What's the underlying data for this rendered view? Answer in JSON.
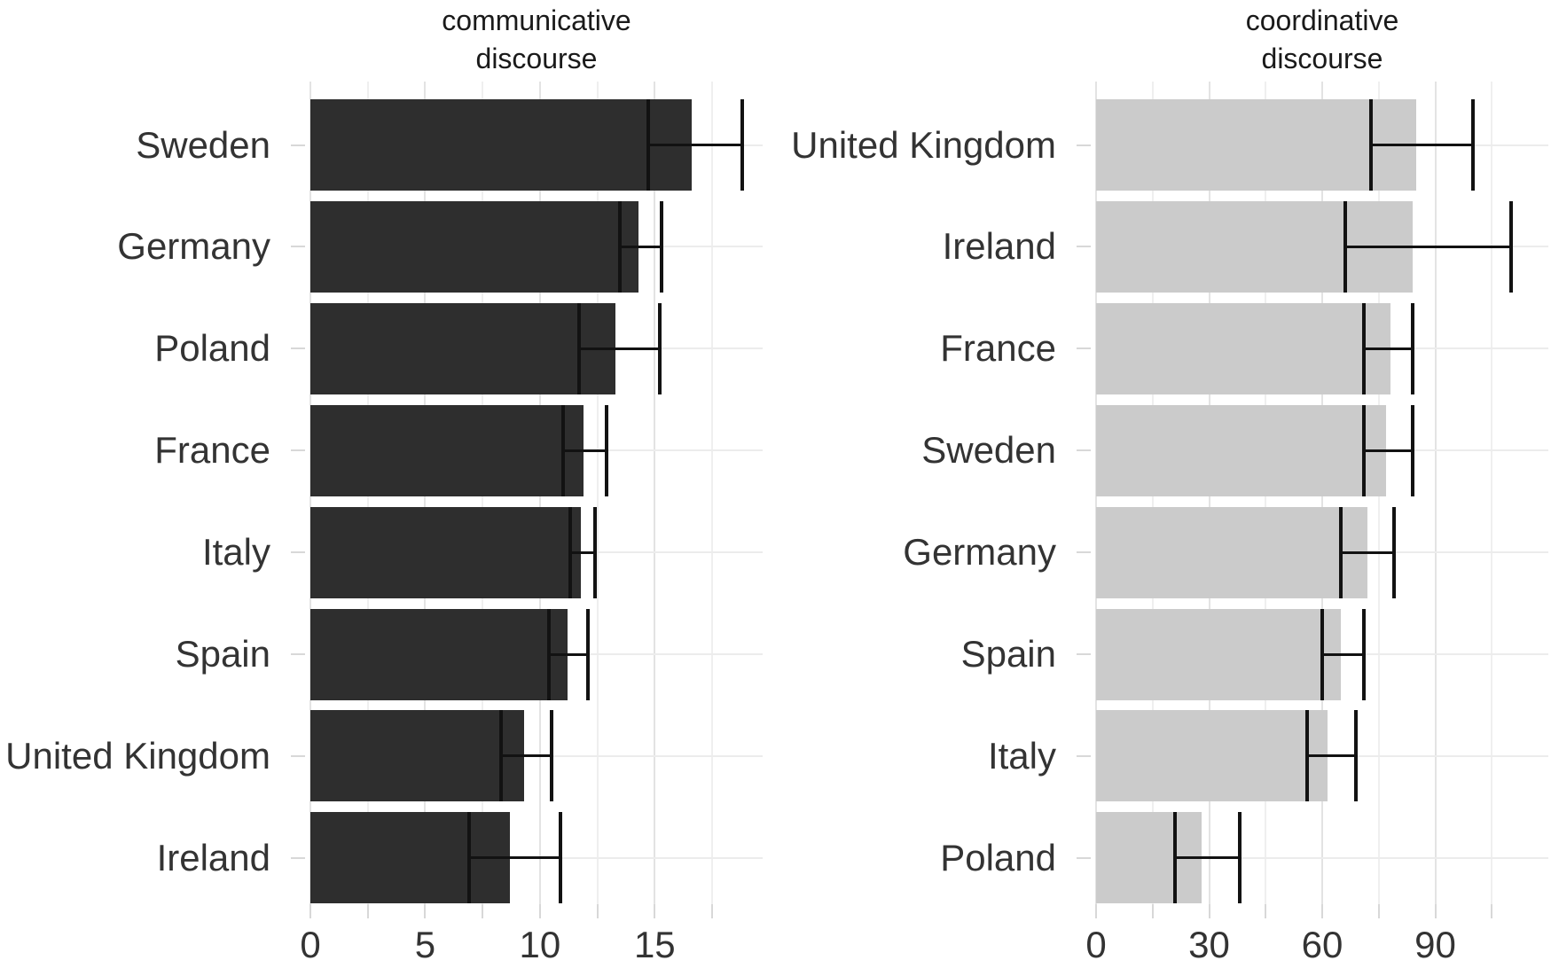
{
  "figure": {
    "background": "#ffffff",
    "error_bar_color": "#121212",
    "grid_major_color": "#e3e3e3",
    "grid_minor_color": "#efefef",
    "row_grid_color": "#ececec",
    "tick_mark_color": "#d8d8d8",
    "axis_text_color": "#333333",
    "title_color": "#1a1a1a"
  },
  "chart_data": [
    {
      "type": "bar",
      "orientation": "horizontal",
      "title_line1": "communicative",
      "title_line2": "discourse",
      "bar_color": "#2e2e2e",
      "grid": true,
      "legend": "none",
      "xlim": [
        0,
        19.7
      ],
      "x_ticks_major": [
        0,
        5,
        10,
        15
      ],
      "x_tick_labels": [
        "0",
        "5",
        "10",
        "15"
      ],
      "x_ticks_minor": [
        2.5,
        7.5,
        12.5,
        17.5
      ],
      "categories": [
        "Sweden",
        "Germany",
        "Poland",
        "France",
        "Italy",
        "Spain",
        "United Kingdom",
        "Ireland"
      ],
      "values": [
        16.6,
        14.3,
        13.3,
        11.9,
        11.8,
        11.2,
        9.3,
        8.7
      ],
      "ci_low": [
        14.7,
        13.5,
        11.7,
        11.0,
        11.3,
        10.4,
        8.3,
        6.9
      ],
      "ci_high": [
        18.8,
        15.3,
        15.2,
        12.9,
        12.4,
        12.1,
        10.5,
        10.9
      ]
    },
    {
      "type": "bar",
      "orientation": "horizontal",
      "title_line1": "coordinative",
      "title_line2": "discourse",
      "bar_color": "#cbcbcb",
      "grid": true,
      "legend": "none",
      "xlim": [
        0,
        120
      ],
      "x_ticks_major": [
        0,
        30,
        60,
        90
      ],
      "x_tick_labels": [
        "0",
        "30",
        "60",
        "90"
      ],
      "x_ticks_minor": [
        15,
        45,
        75,
        105
      ],
      "categories": [
        "United Kingdom",
        "Ireland",
        "France",
        "Sweden",
        "Germany",
        "Spain",
        "Italy",
        "Poland"
      ],
      "values": [
        85,
        84,
        78,
        77,
        72,
        65,
        61.5,
        28
      ],
      "ci_low": [
        73,
        66,
        71,
        71,
        65,
        60,
        56,
        21
      ],
      "ci_high": [
        100,
        110,
        84,
        84,
        79,
        71,
        69,
        38
      ]
    }
  ]
}
